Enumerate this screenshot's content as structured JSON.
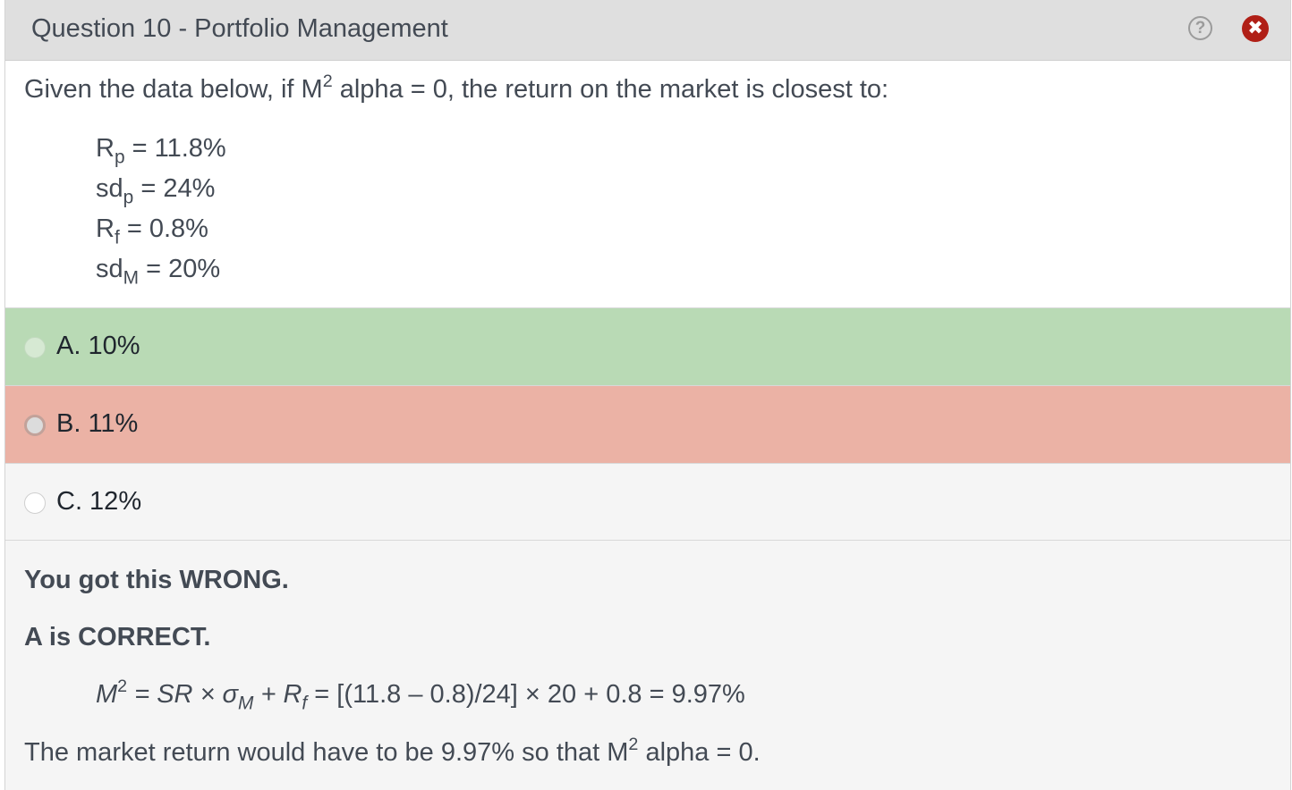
{
  "header": {
    "title": "Question 10 - Portfolio Management",
    "help_glyph": "?",
    "close_glyph": "✖"
  },
  "question": {
    "text_before": "Given the data below, if M",
    "text_sup": "2",
    "text_after": " alpha = 0, the return on the market is closest to:",
    "data": [
      {
        "symbol": "R",
        "sub": "p",
        "value": " = 11.8%"
      },
      {
        "symbol": "sd",
        "sub": "p",
        "value": " = 24%"
      },
      {
        "symbol": "R",
        "sub": "f",
        "value": " = 0.8%"
      },
      {
        "symbol": "sd",
        "sub": "M",
        "value": " = 20%"
      }
    ]
  },
  "options": [
    {
      "label": "A. 10%",
      "state": "correct",
      "color": "#b9dab5"
    },
    {
      "label": "B. 11%",
      "state": "selected-wrong",
      "color": "#ebb2a5"
    },
    {
      "label": "C. 12%",
      "state": "neutral",
      "color": "#f5f5f5"
    }
  ],
  "feedback": {
    "result": "You got this WRONG.",
    "correct": "A is CORRECT.",
    "formula": {
      "m": "M",
      "m_sup": "2",
      "eq1": " = SR × σ",
      "sigma_sub": "M",
      "plus_rf": " + R",
      "rf_sub": "f",
      "rest": " = [(11.8 – 0.8)/24] × 20 + 0.8 = 9.97%"
    },
    "explain_before": "The market return would have to be 9.97% so that M",
    "explain_sup": "2",
    "explain_after": " alpha = 0."
  },
  "colors": {
    "header_bg": "#dfdfdf",
    "close_red": "#b01f16",
    "correct_green": "#b9dab5",
    "wrong_red": "#ebb2a5"
  }
}
